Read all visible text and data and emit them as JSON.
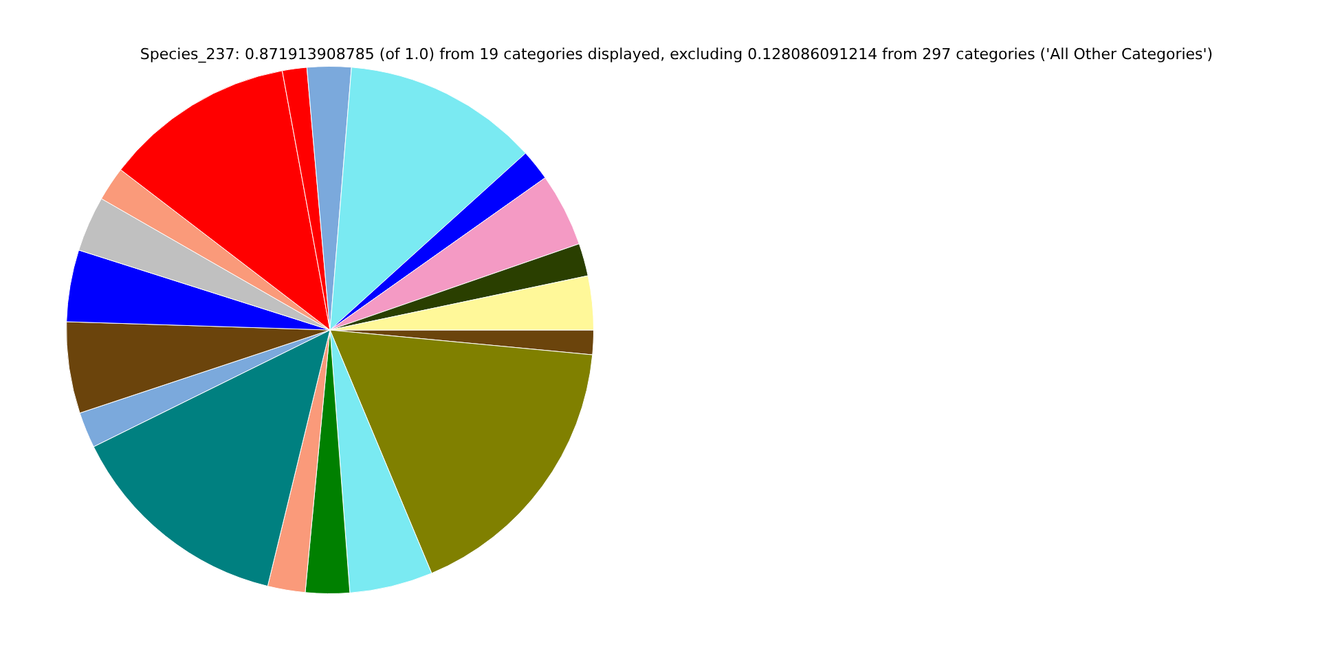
{
  "chart_data": {
    "type": "pie",
    "title": "Species_237: 0.871913908785 (of 1.0) from 19 categories displayed, excluding 0.128086091214 from 297 categories ('All Other Categories')",
    "categories": [
      null,
      null,
      null,
      null,
      null,
      null,
      null,
      null,
      null,
      null,
      null,
      null,
      null,
      null,
      null,
      null,
      null,
      null,
      null
    ],
    "values": [
      1.5,
      17.2,
      5.1,
      2.7,
      2.3,
      13.9,
      2.2,
      5.6,
      4.4,
      3.4,
      2.1,
      11.7,
      1.5,
      2.7,
      12.0,
      1.9,
      4.5,
      2.0,
      3.3
    ],
    "colors": [
      "#6b440c",
      "#808000",
      "#7aeaf2",
      "#008000",
      "#fa9a7a",
      "#008080",
      "#7ba9dc",
      "#6b440c",
      "#0000ff",
      "#c0c0c0",
      "#fa9a7a",
      "#ff0000",
      "#ff0000",
      "#7ba9dc",
      "#7aeaf2",
      "#0000ff",
      "#f49ac4",
      "#2a3f00",
      "#fff899"
    ],
    "legend": false
  }
}
